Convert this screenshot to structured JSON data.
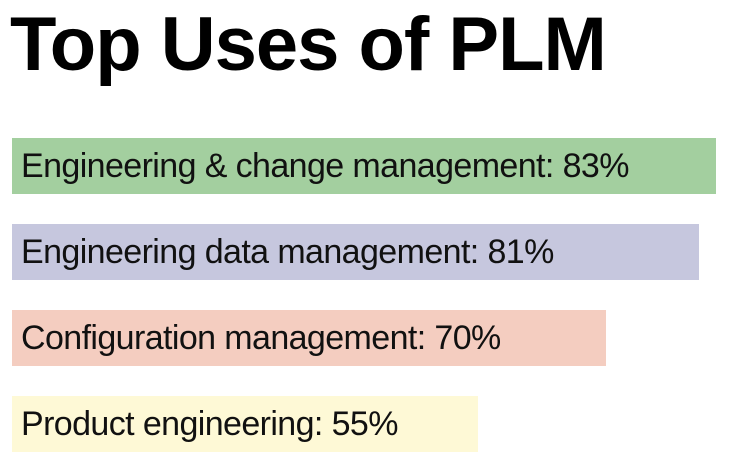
{
  "chart_data": {
    "type": "bar",
    "orientation": "horizontal",
    "title": "Top Uses of PLM",
    "categories": [
      "Engineering & change management",
      "Engineering data management",
      "Configuration management",
      "Product engineering"
    ],
    "values": [
      83,
      81,
      70,
      55
    ],
    "labels": [
      "Engineering & change management: 83%",
      "Engineering data management: 81%",
      "Configuration management: 70%",
      "Product engineering: 55%"
    ],
    "colors": [
      "#a3cf9f",
      "#c6c7de",
      "#f4cdc0",
      "#fef9d6"
    ],
    "unit": "%",
    "xlim": [
      0,
      100
    ],
    "xlabel": "",
    "ylabel": "",
    "grid": false,
    "legend": "none"
  }
}
